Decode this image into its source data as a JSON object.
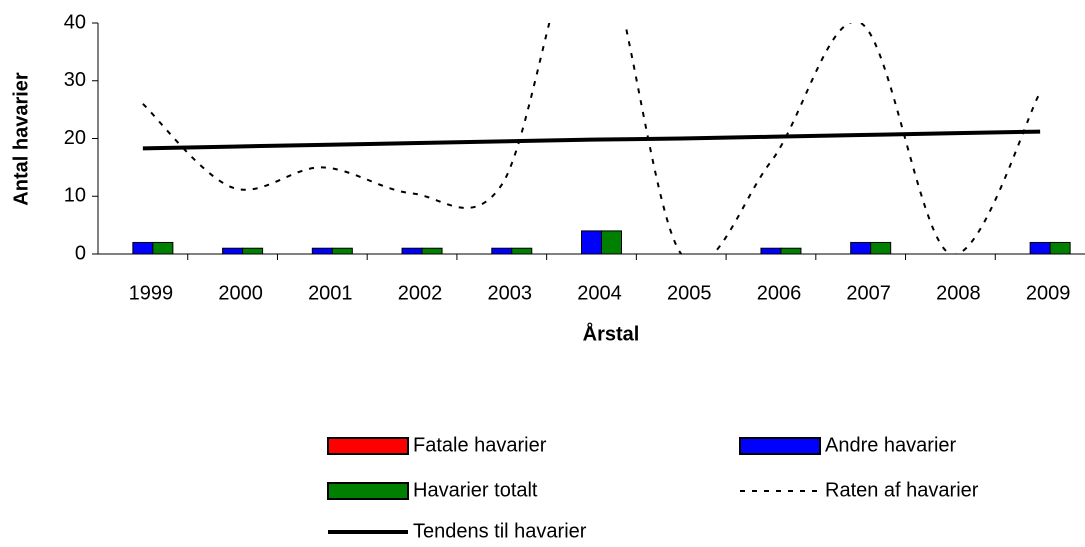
{
  "chart_data": {
    "type": "bar",
    "xlabel": "Årstal",
    "ylabel": "Antal havarier",
    "categories": [
      "1999",
      "2000",
      "2001",
      "2002",
      "2003",
      "2004",
      "2005",
      "2006",
      "2007",
      "2008",
      "2009"
    ],
    "series": [
      {
        "name": "Fatale havarier",
        "color": "#ff0000",
        "kind": "bar",
        "values": [
          0,
          0,
          0,
          0,
          0,
          0,
          0,
          0,
          0,
          0,
          0
        ]
      },
      {
        "name": "Andre havarier",
        "color": "#0000ff",
        "kind": "bar",
        "values": [
          2,
          1,
          1,
          1,
          1,
          4,
          0,
          1,
          2,
          0,
          2
        ]
      },
      {
        "name": "Havarier totalt",
        "color": "#008000",
        "kind": "bar",
        "values": [
          2,
          1,
          1,
          1,
          1,
          4,
          0,
          1,
          2,
          0,
          2
        ]
      },
      {
        "name": "Raten af havarier",
        "color": "#000000",
        "kind": "dashed-line",
        "values": [
          26,
          11.5,
          15,
          10.5,
          12,
          57,
          0,
          16,
          40,
          0,
          28
        ]
      },
      {
        "name": "Tendens til havarier",
        "color": "#000000",
        "kind": "line",
        "values": [
          18.3,
          18.6,
          18.9,
          19.2,
          19.5,
          19.8,
          20.0,
          20.3,
          20.6,
          20.9,
          21.2
        ]
      }
    ],
    "ylim": [
      0,
      40
    ],
    "yticks": [
      0,
      10,
      20,
      30,
      40
    ],
    "grid": false,
    "legend": "bottom"
  }
}
